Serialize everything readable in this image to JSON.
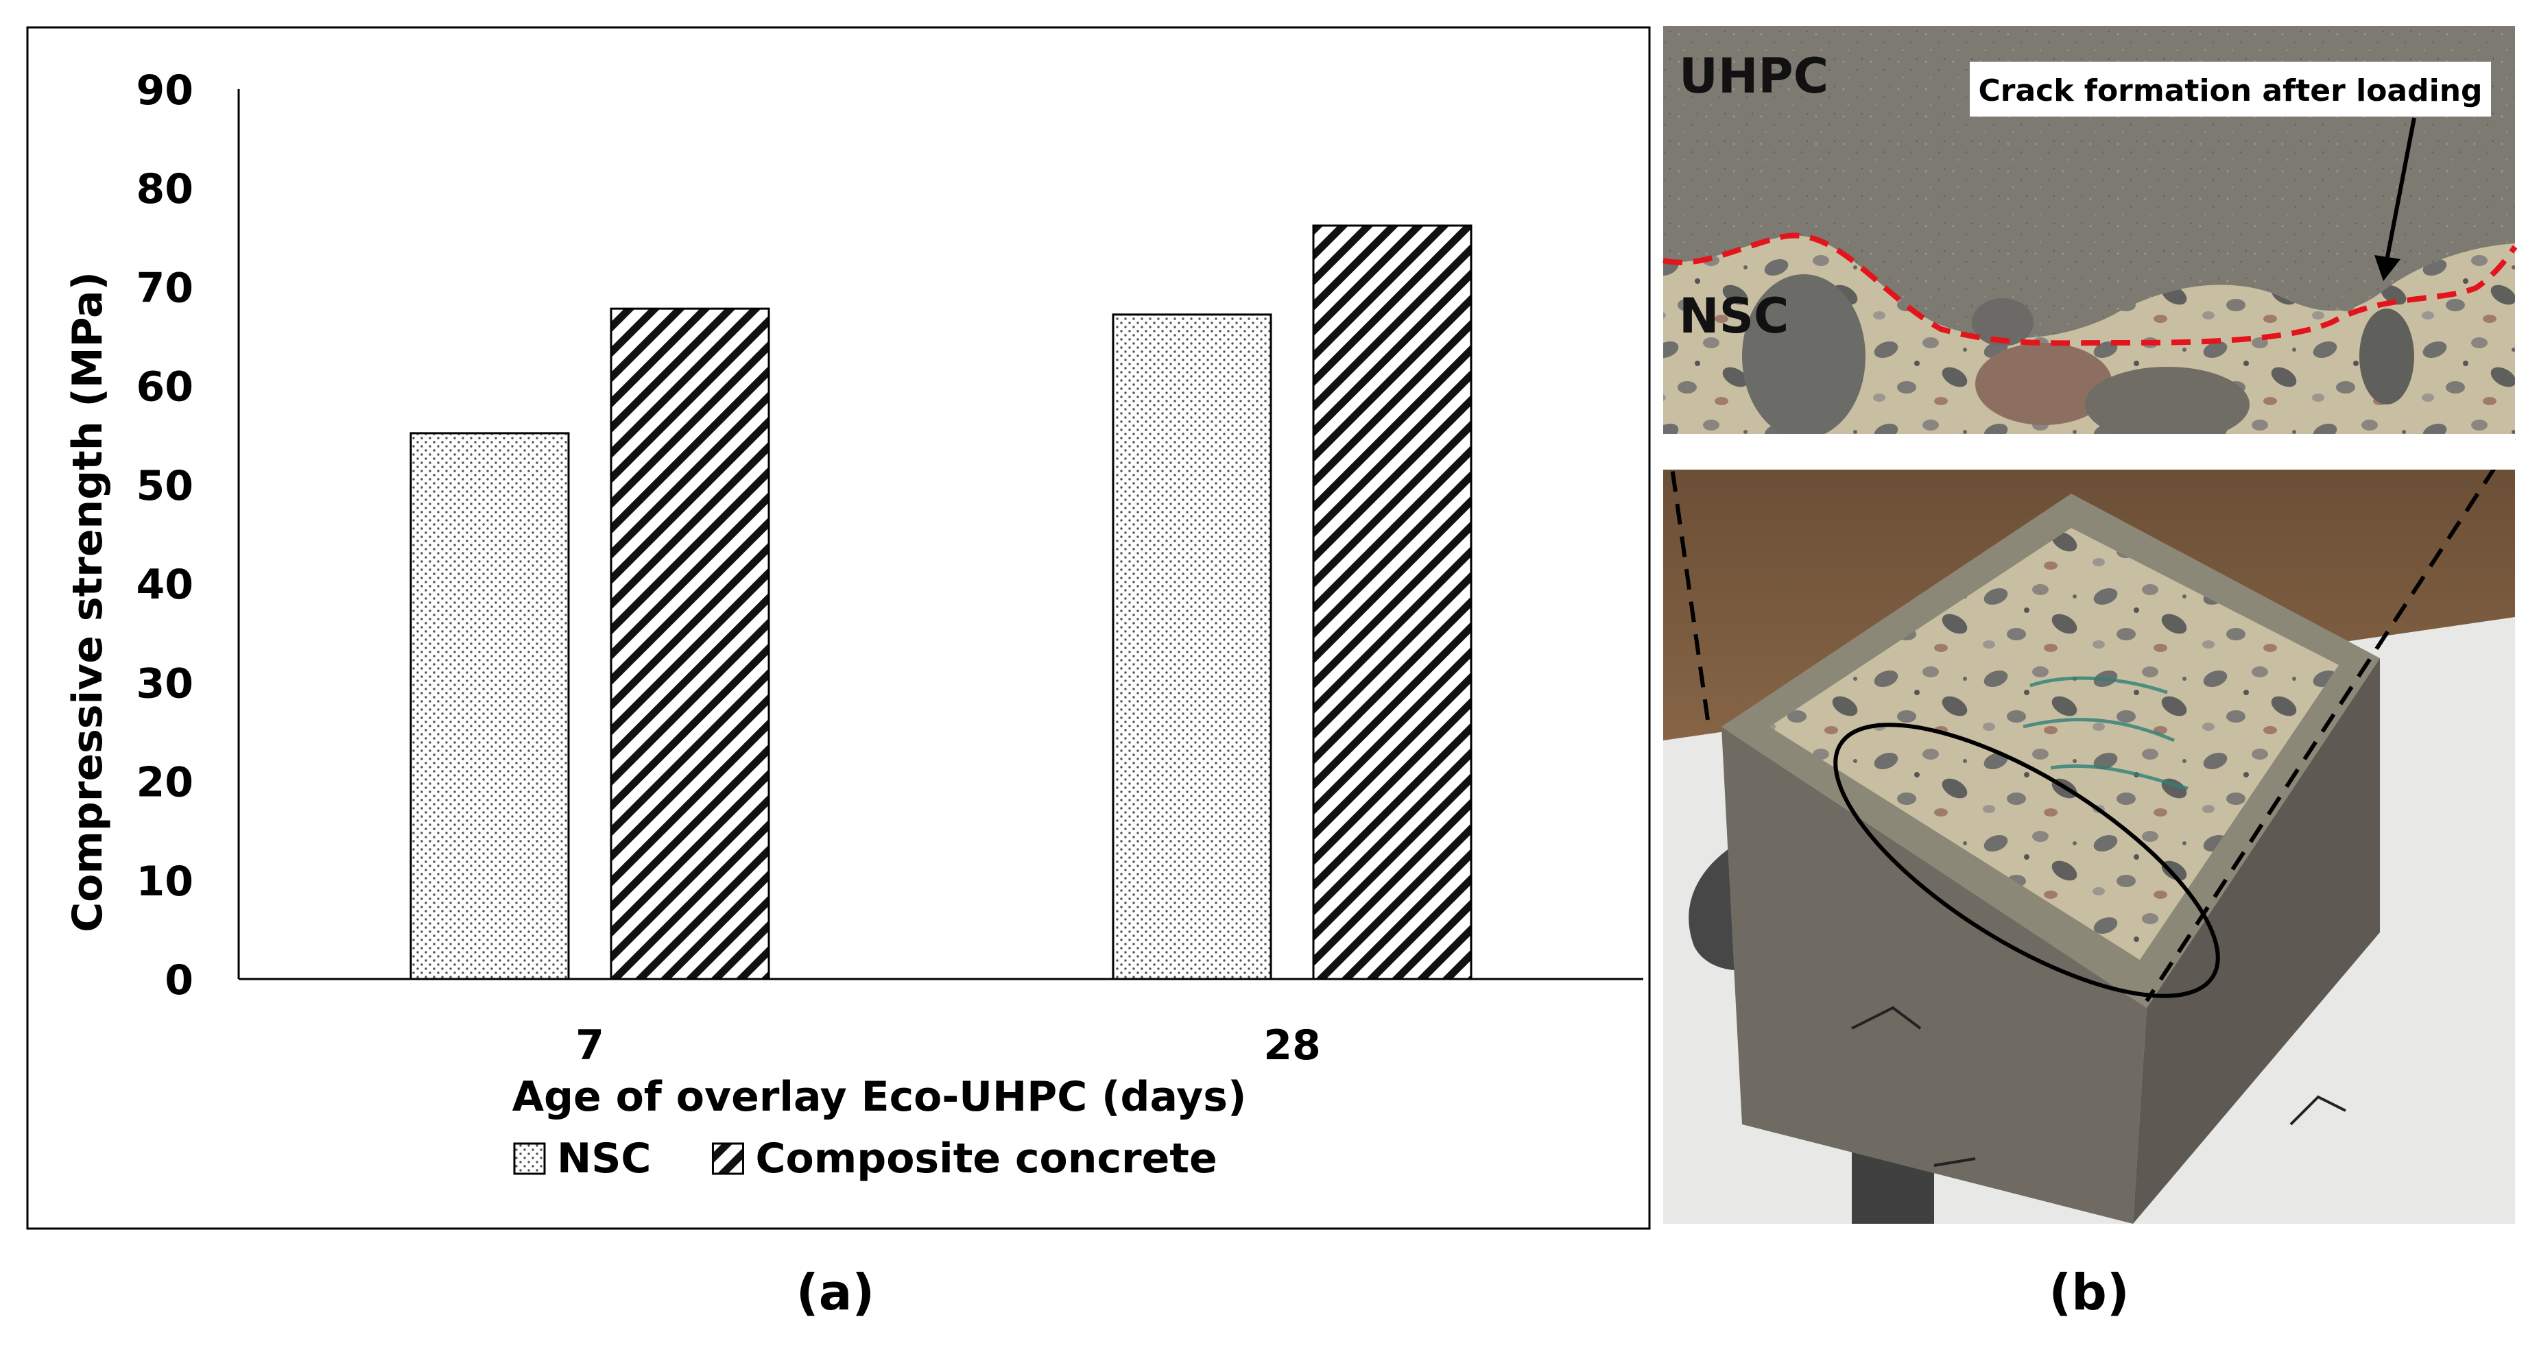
{
  "chart_data": {
    "type": "bar",
    "categories": [
      "7",
      "28"
    ],
    "series": [
      {
        "name": "NSC",
        "values": [
          55.2,
          67.2
        ],
        "pattern": "dots"
      },
      {
        "name": "Composite concrete",
        "values": [
          67.8,
          76.2
        ],
        "pattern": "hatch"
      }
    ],
    "xlabel": "Age of overlay Eco-UHPC (days)",
    "ylabel": "Compressive strength (MPa)",
    "ylim": [
      0,
      90
    ],
    "yticks": [
      "0",
      "10",
      "20",
      "30",
      "40",
      "50",
      "60",
      "70",
      "80",
      "90"
    ],
    "grid": false,
    "legend_position": "bottom-center"
  },
  "panel_labels": {
    "a": "(a)",
    "b": "(b)"
  },
  "photo": {
    "label_top": "UHPC",
    "label_bottom": "NSC",
    "annotation": "Crack formation after loading"
  },
  "colors": {
    "bar_outline": "#000000",
    "crack_line": "#e3141b",
    "specimen_grey": "#7c7970",
    "nsc_beige": "#c9c0a6"
  }
}
